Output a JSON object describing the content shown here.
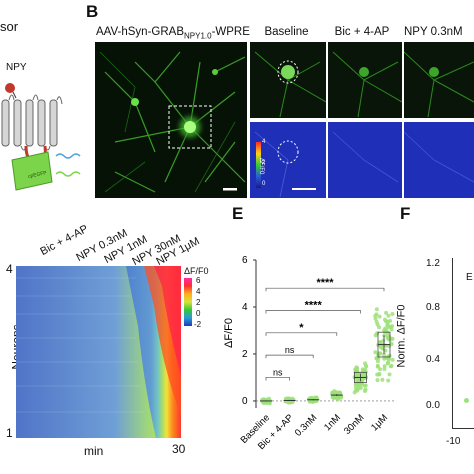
{
  "panel_a": {
    "title_fragment": "sor",
    "npy_label": "NPY",
    "cpegfp_label": "cpEGFP"
  },
  "panel_b": {
    "letter": "B",
    "main_title": "AAV-hSyn-GRAB",
    "main_title_sub": "NPY1.0",
    "main_title_end": "-WPRE",
    "col_titles": [
      "Baseline",
      "Bic + 4-AP",
      "NPY 0.3nM"
    ],
    "cbar_label": "ΔF/F0",
    "cbar_ticks": [
      "4",
      "2",
      "0"
    ]
  },
  "panel_d": {
    "conditions": [
      "Bic + 4-AP",
      "NPY 0.3nM",
      "NPY 1nM",
      "NPY 30nM",
      "NPY 1μM"
    ],
    "ylabel": "Neurons",
    "ytick_top": "4",
    "ytick_bottom": "1",
    "xlabel": "min",
    "xtick_right": "30",
    "cbar_title": "ΔF/F0",
    "cbar_ticks": [
      "6",
      "4",
      "2",
      "0",
      "-2"
    ]
  },
  "panel_e": {
    "letter": "E",
    "chart_data": {
      "type": "scatter",
      "categories": [
        "Baseline",
        "Bic + 4-AP",
        "0.3nM",
        "1nM",
        "30nM",
        "1μM"
      ],
      "means": [
        0.0,
        0.02,
        0.05,
        0.25,
        1.0,
        2.4
      ],
      "ylabel": "ΔF/F0",
      "ylim": [
        -0.3,
        6
      ],
      "yticks": [
        0,
        2,
        4,
        6
      ],
      "significance": [
        {
          "from": "Baseline",
          "to": "Bic + 4-AP",
          "label": "ns"
        },
        {
          "from": "Baseline",
          "to": "0.3nM",
          "label": "ns"
        },
        {
          "from": "Baseline",
          "to": "1nM",
          "label": "*"
        },
        {
          "from": "Baseline",
          "to": "30nM",
          "label": "****"
        },
        {
          "from": "Baseline",
          "to": "1μM",
          "label": "****"
        }
      ],
      "point_color": "#9ee07a"
    }
  },
  "panel_f": {
    "letter": "F",
    "ylabel": "Norm. ΔF/F0",
    "yticks": [
      "1.2",
      "0.8",
      "0.4",
      "0.0"
    ],
    "xtick": "-10",
    "fragment": "E"
  }
}
